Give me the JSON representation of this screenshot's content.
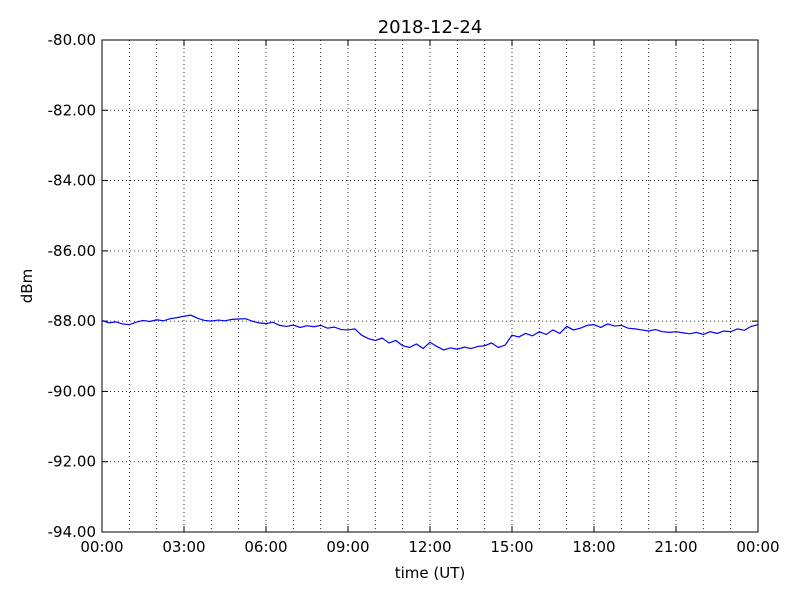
{
  "chart_data": {
    "type": "line",
    "title": "2018-12-24",
    "x_label": "time (UT)",
    "y_label": "dBm",
    "x": [
      0,
      0.25,
      0.5,
      0.75,
      1,
      1.25,
      1.5,
      1.75,
      2,
      2.25,
      2.5,
      2.75,
      3,
      3.25,
      3.5,
      3.75,
      4,
      4.25,
      4.5,
      4.75,
      5,
      5.25,
      5.5,
      5.75,
      6,
      6.25,
      6.5,
      6.75,
      7,
      7.25,
      7.5,
      7.75,
      8,
      8.25,
      8.5,
      8.75,
      9,
      9.25,
      9.5,
      9.75,
      10,
      10.25,
      10.5,
      10.75,
      11,
      11.25,
      11.5,
      11.75,
      12,
      12.25,
      12.5,
      12.75,
      13,
      13.25,
      13.5,
      13.75,
      14,
      14.25,
      14.5,
      14.75,
      15,
      15.25,
      15.5,
      15.75,
      16,
      16.25,
      16.5,
      16.75,
      17,
      17.25,
      17.5,
      17.75,
      18,
      18.25,
      18.5,
      18.75,
      19,
      19.25,
      19.5,
      19.75,
      20,
      20.25,
      20.5,
      20.75,
      21,
      21.25,
      21.5,
      21.75,
      22,
      22.25,
      22.5,
      22.75,
      23,
      23.25,
      23.5,
      23.75,
      24
    ],
    "series": [
      {
        "color": "#0000ff",
        "values": [
          -87.98,
          -88.05,
          -88.02,
          -88.08,
          -88.1,
          -88.03,
          -87.98,
          -88.01,
          -87.96,
          -87.99,
          -87.93,
          -87.9,
          -87.86,
          -87.83,
          -87.92,
          -87.98,
          -88.0,
          -87.97,
          -87.99,
          -87.95,
          -87.94,
          -87.93,
          -88.0,
          -88.05,
          -88.07,
          -88.03,
          -88.12,
          -88.15,
          -88.11,
          -88.18,
          -88.13,
          -88.16,
          -88.12,
          -88.2,
          -88.17,
          -88.24,
          -88.25,
          -88.22,
          -88.4,
          -88.5,
          -88.55,
          -88.48,
          -88.62,
          -88.55,
          -88.7,
          -88.75,
          -88.65,
          -88.78,
          -88.6,
          -88.72,
          -88.82,
          -88.76,
          -88.8,
          -88.74,
          -88.78,
          -88.72,
          -88.7,
          -88.62,
          -88.75,
          -88.68,
          -88.4,
          -88.45,
          -88.35,
          -88.42,
          -88.3,
          -88.38,
          -88.25,
          -88.35,
          -88.15,
          -88.25,
          -88.2,
          -88.12,
          -88.1,
          -88.18,
          -88.08,
          -88.14,
          -88.12,
          -88.2,
          -88.22,
          -88.25,
          -88.28,
          -88.24,
          -88.3,
          -88.32,
          -88.3,
          -88.33,
          -88.36,
          -88.32,
          -88.38,
          -88.3,
          -88.35,
          -88.28,
          -88.3,
          -88.22,
          -88.26,
          -88.15,
          -88.1
        ]
      }
    ],
    "xlim": [
      0,
      24
    ],
    "xticks": [
      {
        "value": 0,
        "label": "00:00"
      },
      {
        "value": 3,
        "label": "03:00"
      },
      {
        "value": 6,
        "label": "06:00"
      },
      {
        "value": 9,
        "label": "09:00"
      },
      {
        "value": 12,
        "label": "12:00"
      },
      {
        "value": 15,
        "label": "15:00"
      },
      {
        "value": 18,
        "label": "18:00"
      },
      {
        "value": 21,
        "label": "21:00"
      },
      {
        "value": 24,
        "label": "00:00"
      }
    ],
    "minor_xticks": [
      1,
      2,
      4,
      5,
      7,
      8,
      10,
      11,
      13,
      14,
      16,
      17,
      19,
      20,
      22,
      23
    ],
    "ylim": [
      -94,
      -80
    ],
    "yticks": [
      {
        "value": -94,
        "label": "-94.00"
      },
      {
        "value": -92,
        "label": "-92.00"
      },
      {
        "value": -90,
        "label": "-90.00"
      },
      {
        "value": -88,
        "label": "-88.00"
      },
      {
        "value": -86,
        "label": "-86.00"
      },
      {
        "value": -84,
        "label": "-84.00"
      },
      {
        "value": -82,
        "label": "-82.00"
      },
      {
        "value": -80,
        "label": "-80.00"
      }
    ],
    "grid": true
  }
}
